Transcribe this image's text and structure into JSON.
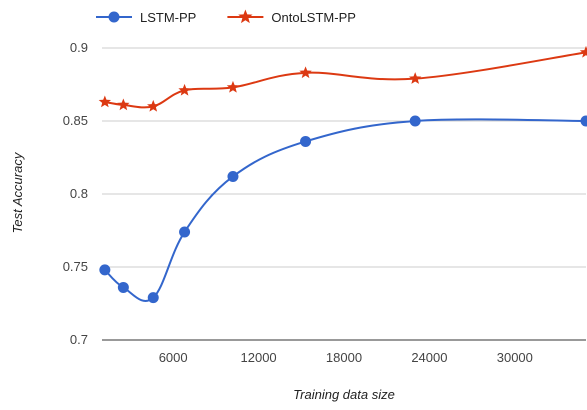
{
  "chart_data": {
    "type": "line",
    "title": "",
    "xlabel": "Training data size",
    "ylabel": "Test Accuracy",
    "xlim": [
      1000,
      35000
    ],
    "ylim": [
      0.7,
      0.9
    ],
    "xticks": [
      6000,
      12000,
      18000,
      24000,
      30000
    ],
    "xtick_labels": [
      "6000",
      "12000",
      "18000",
      "24000",
      "30000"
    ],
    "yticks": [
      0.7,
      0.75,
      0.8,
      0.85,
      0.9
    ],
    "ytick_labels": [
      "0.7",
      "0.75",
      "0.8",
      "0.85",
      "0.9"
    ],
    "grid": "horizontal",
    "legend": "top-left",
    "series": [
      {
        "name": "LSTM-PP",
        "color": "#3366cc",
        "marker": "circle",
        "x": [
          1200,
          2500,
          4600,
          6800,
          10200,
          15300,
          23000,
          35000
        ],
        "y": [
          0.748,
          0.736,
          0.729,
          0.774,
          0.812,
          0.836,
          0.85,
          0.85
        ]
      },
      {
        "name": "OntoLSTM-PP",
        "color": "#dc3912",
        "marker": "star",
        "x": [
          1200,
          2500,
          4600,
          6800,
          10200,
          15300,
          23000,
          35000
        ],
        "y": [
          0.863,
          0.861,
          0.86,
          0.871,
          0.873,
          0.883,
          0.879,
          0.897
        ]
      }
    ]
  }
}
